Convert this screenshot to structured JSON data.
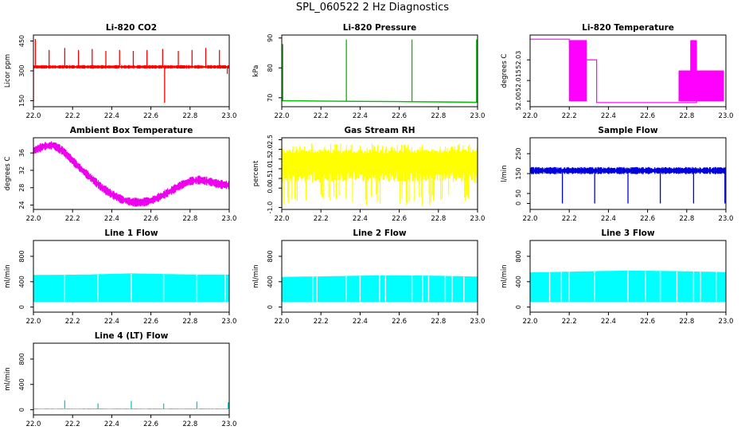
{
  "figure": {
    "title": "SPL_060522  2 Hz Diagnostics"
  },
  "chart_data": [
    {
      "type": "line",
      "title": "Li-820 CO2",
      "ylabel": "Licor ppm",
      "xlabel": "",
      "xlim": [
        22.0,
        23.0
      ],
      "ylim": [
        120,
        480
      ],
      "xticks": [
        "22.0",
        "22.2",
        "22.4",
        "22.6",
        "22.8",
        "23.0"
      ],
      "yticks": [
        {
          "v": 150,
          "t": "150"
        },
        {
          "v": 300,
          "t": "300"
        },
        {
          "v": 450,
          "t": "450"
        }
      ],
      "color": "#ff0000",
      "series": [
        {
          "name": "CO2",
          "kind": "band",
          "base": 320,
          "amp": 6,
          "x": [
            22.0,
            23.0
          ],
          "spikes": [
            [
              22.01,
              460
            ],
            [
              22.0,
              150
            ],
            [
              22.08,
              405
            ],
            [
              22.16,
              415
            ],
            [
              22.23,
              405
            ],
            [
              22.3,
              410
            ],
            [
              22.37,
              400
            ],
            [
              22.44,
              405
            ],
            [
              22.51,
              400
            ],
            [
              22.58,
              405
            ],
            [
              22.66,
              410
            ],
            [
              22.67,
              140
            ],
            [
              22.74,
              400
            ],
            [
              22.81,
              405
            ],
            [
              22.88,
              415
            ],
            [
              22.95,
              405
            ],
            [
              22.99,
              285
            ]
          ]
        }
      ]
    },
    {
      "type": "line",
      "title": "Li-820 Pressure",
      "ylabel": "kPa",
      "xlabel": "",
      "xlim": [
        22.0,
        23.0
      ],
      "ylim": [
        67,
        91
      ],
      "xticks": [
        "22.0",
        "22.2",
        "22.4",
        "22.6",
        "22.8",
        "23.0"
      ],
      "yticks": [
        {
          "v": 70,
          "t": "70"
        },
        {
          "v": 80,
          "t": "80"
        },
        {
          "v": 90,
          "t": "90"
        }
      ],
      "color": "#00bb00",
      "series": [
        {
          "name": "Pressure",
          "kind": "line",
          "x": [
            22.0,
            22.2,
            22.4,
            22.6,
            22.8,
            23.0
          ],
          "y": [
            69.0,
            68.9,
            68.8,
            68.7,
            68.6,
            68.5
          ],
          "spikes": [
            [
              22.005,
              88
            ],
            [
              22.33,
              89.5
            ],
            [
              22.665,
              89.5
            ],
            [
              22.995,
              89.5
            ]
          ]
        }
      ]
    },
    {
      "type": "line",
      "title": "Li-820 Temperature",
      "ylabel": "degrees C",
      "xlabel": "",
      "xlim": [
        22.0,
        23.0
      ],
      "ylim": [
        51.996,
        52.048
      ],
      "xticks": [
        "22.0",
        "22.2",
        "22.4",
        "22.6",
        "22.8",
        "23.0"
      ],
      "yticks": [
        {
          "v": 52.0,
          "t": "52.00"
        },
        {
          "v": 52.015,
          "t": "52.015"
        },
        {
          "v": 52.03,
          "t": "52.03"
        }
      ],
      "color": "#ff00ff",
      "series": [
        {
          "name": "Temperature",
          "kind": "step",
          "x": [
            22.0,
            22.18,
            22.2,
            22.27,
            22.34,
            22.55,
            22.76,
            22.85,
            22.99
          ],
          "y": [
            52.045,
            52.045,
            52.043,
            52.03,
            51.999,
            51.999,
            51.999,
            52.02,
            52.02
          ],
          "noisy": [
            [
              22.2,
              22.29,
              52.0,
              52.044
            ],
            [
              22.76,
              22.99,
              52.0,
              52.022
            ],
            [
              22.82,
              22.85,
              52.0,
              52.044
            ]
          ]
        }
      ]
    },
    {
      "type": "line",
      "title": "Ambient Box Temperature",
      "ylabel": "degrees C",
      "xlabel": "",
      "xlim": [
        22.0,
        23.0
      ],
      "ylim": [
        23,
        39.5
      ],
      "xticks": [
        "22.0",
        "22.2",
        "22.4",
        "22.6",
        "22.8",
        "23.0"
      ],
      "yticks": [
        {
          "v": 24,
          "t": "24"
        },
        {
          "v": 28,
          "t": "28"
        },
        {
          "v": 32,
          "t": "32"
        },
        {
          "v": 36,
          "t": "36"
        }
      ],
      "color": "#ee00ee",
      "series": [
        {
          "name": "Ambient",
          "kind": "band",
          "amp": 0.7,
          "x": [
            22.0,
            22.05,
            22.1,
            22.15,
            22.2,
            22.25,
            22.3,
            22.35,
            22.4,
            22.45,
            22.5,
            22.55,
            22.6,
            22.65,
            22.7,
            22.75,
            22.8,
            22.85,
            22.9,
            22.95,
            23.0
          ],
          "y": [
            36.5,
            37.5,
            37.8,
            36.5,
            34.2,
            32.0,
            30.0,
            28.0,
            26.5,
            25.3,
            24.7,
            24.6,
            25.0,
            26.0,
            27.2,
            28.5,
            29.5,
            29.8,
            29.4,
            28.8,
            28.6
          ]
        }
      ]
    },
    {
      "type": "line",
      "title": "Gas Stream RH",
      "ylabel": "percent",
      "xlabel": "",
      "xlim": [
        22.0,
        23.0
      ],
      "ylim": [
        -1.1,
        2.6
      ],
      "xticks": [
        "22.0",
        "22.2",
        "22.4",
        "22.6",
        "22.8",
        "23.0"
      ],
      "yticks": [
        {
          "v": -1.0,
          "t": "-1.0"
        },
        {
          "v": 0.0,
          "t": "0.0"
        },
        {
          "v": 0.5,
          "t": "0.5"
        },
        {
          "v": 1.0,
          "t": "1.0"
        },
        {
          "v": 1.5,
          "t": "1.5"
        },
        {
          "v": 2.0,
          "t": "2.0"
        },
        {
          "v": 2.5,
          "t": "2.5"
        }
      ],
      "color": "#ffff00",
      "series": [
        {
          "name": "RH",
          "kind": "noise",
          "x": [
            22.0,
            23.0
          ],
          "top": 2.0,
          "bottom": 0.3,
          "minBottom": -0.9
        }
      ]
    },
    {
      "type": "line",
      "title": "Sample Flow",
      "ylabel": "l/min",
      "xlabel": "",
      "xlim": [
        22.0,
        23.0
      ],
      "ylim": [
        -30,
        330
      ],
      "xticks": [
        "22.0",
        "22.2",
        "22.4",
        "22.6",
        "22.8",
        "23.0"
      ],
      "yticks": [
        {
          "v": 0,
          "t": "0"
        },
        {
          "v": 50,
          "t": "50"
        },
        {
          "v": 150,
          "t": "150"
        },
        {
          "v": 250,
          "t": "250"
        }
      ],
      "color": "#0000dd",
      "series": [
        {
          "name": "Sample",
          "kind": "band",
          "base": 165,
          "amp": 12,
          "x": [
            22.0,
            23.0
          ],
          "spikes": [
            [
              22.165,
              0
            ],
            [
              22.33,
              0
            ],
            [
              22.5,
              0
            ],
            [
              22.665,
              0
            ],
            [
              22.835,
              0
            ],
            [
              22.995,
              0
            ]
          ]
        }
      ]
    },
    {
      "type": "area",
      "title": "Line 1 Flow",
      "ylabel": "ml/min",
      "xlabel": "",
      "xlim": [
        22.0,
        23.0
      ],
      "ylim": [
        -80,
        1050
      ],
      "xticks": [
        "22.0",
        "22.2",
        "22.4",
        "22.6",
        "22.8",
        "23.0"
      ],
      "yticks": [
        {
          "v": 0,
          "t": "0"
        },
        {
          "v": 400,
          "t": "400"
        },
        {
          "v": 800,
          "t": "800"
        }
      ],
      "color": "#00ffff",
      "series": [
        {
          "name": "Line 1",
          "kind": "fill",
          "x": [
            22.0,
            22.25,
            22.5,
            22.75,
            23.0
          ],
          "top": [
            500,
            505,
            525,
            510,
            505
          ],
          "bottom": 90,
          "gaps": [
            22.16,
            22.33,
            22.5,
            22.665,
            22.835,
            22.98
          ]
        }
      ]
    },
    {
      "type": "area",
      "title": "Line 2 Flow",
      "ylabel": "ml/min",
      "xlabel": "",
      "xlim": [
        22.0,
        23.0
      ],
      "ylim": [
        -80,
        1050
      ],
      "xticks": [
        "22.0",
        "22.2",
        "22.4",
        "22.6",
        "22.8",
        "23.0"
      ],
      "yticks": [
        {
          "v": 0,
          "t": "0"
        },
        {
          "v": 400,
          "t": "400"
        },
        {
          "v": 800,
          "t": "800"
        }
      ],
      "color": "#00ffff",
      "series": [
        {
          "name": "Line 2",
          "kind": "fill",
          "x": [
            22.0,
            22.25,
            22.5,
            22.75,
            23.0
          ],
          "top": [
            470,
            480,
            495,
            490,
            475
          ],
          "bottom": 90,
          "gaps": [
            22.16,
            22.18,
            22.33,
            22.4,
            22.5,
            22.53,
            22.665,
            22.72,
            22.75,
            22.835,
            22.87,
            22.93
          ]
        }
      ]
    },
    {
      "type": "area",
      "title": "Line 3 Flow",
      "ylabel": "ml/min",
      "xlabel": "",
      "xlim": [
        22.0,
        23.0
      ],
      "ylim": [
        -80,
        1050
      ],
      "xticks": [
        "22.0",
        "22.2",
        "22.4",
        "22.6",
        "22.8",
        "23.0"
      ],
      "yticks": [
        {
          "v": 0,
          "t": "0"
        },
        {
          "v": 400,
          "t": "400"
        },
        {
          "v": 800,
          "t": "800"
        }
      ],
      "color": "#00ffff",
      "series": [
        {
          "name": "Line 3",
          "kind": "fill",
          "x": [
            22.0,
            22.25,
            22.5,
            22.75,
            23.0
          ],
          "top": [
            540,
            555,
            570,
            560,
            545
          ],
          "bottom": 90,
          "gaps": [
            22.1,
            22.16,
            22.2,
            22.33,
            22.5,
            22.59,
            22.665,
            22.75,
            22.835,
            22.87,
            22.95
          ]
        }
      ]
    },
    {
      "type": "line",
      "title": "Line 4 (LT) Flow",
      "ylabel": "ml/min",
      "xlabel": "",
      "xlim": [
        22.0,
        23.0
      ],
      "ylim": [
        -80,
        1050
      ],
      "xticks": [
        "22.0",
        "22.2",
        "22.4",
        "22.6",
        "22.8",
        "23.0"
      ],
      "yticks": [
        {
          "v": 0,
          "t": "0"
        },
        {
          "v": 400,
          "t": "400"
        },
        {
          "v": 800,
          "t": "800"
        }
      ],
      "color": "#00cccc",
      "series": [
        {
          "name": "Line 4",
          "kind": "band",
          "base": 15,
          "amp": 4,
          "x": [
            22.0,
            23.0
          ],
          "spikes": [
            [
              22.16,
              150
            ],
            [
              22.33,
              100
            ],
            [
              22.5,
              140
            ],
            [
              22.665,
              100
            ],
            [
              22.835,
              130
            ],
            [
              22.995,
              120
            ]
          ]
        }
      ]
    }
  ]
}
